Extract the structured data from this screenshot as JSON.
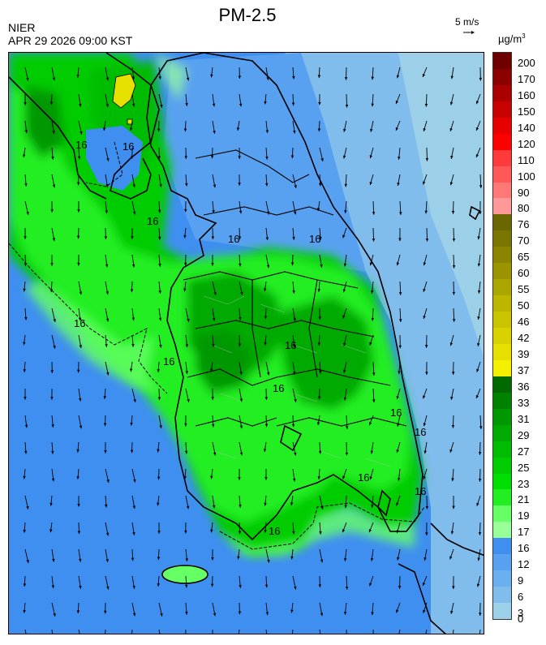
{
  "header": {
    "title": "PM-2.5",
    "agency": "NIER",
    "datetime": "APR 29 2026 09:00 KST",
    "reference_vector": "5 m/s",
    "unit_base": "µg/m",
    "unit_exp": "3"
  },
  "colorbar": {
    "labels": [
      "200",
      "170",
      "160",
      "150",
      "140",
      "120",
      "110",
      "100",
      "90",
      "80",
      "76",
      "70",
      "65",
      "60",
      "55",
      "50",
      "46",
      "42",
      "39",
      "37",
      "36",
      "33",
      "31",
      "29",
      "27",
      "25",
      "23",
      "21",
      "19",
      "17",
      "16",
      "12",
      "9",
      "6",
      "3",
      "0"
    ],
    "colors": [
      "#6e0000",
      "#8c0000",
      "#aa0000",
      "#c80000",
      "#e60000",
      "#ff0000",
      "#ff3a3a",
      "#ff5858",
      "#ff7878",
      "#ff9898",
      "#6a6600",
      "#7a7400",
      "#8a8400",
      "#9a9400",
      "#aca600",
      "#bcb600",
      "#cac400",
      "#d8d200",
      "#e6e000",
      "#f5f000",
      "#006a00",
      "#008200",
      "#009800",
      "#00aa00",
      "#00bc00",
      "#00cc00",
      "#00dd00",
      "#22ee22",
      "#66ff66",
      "#99ff99",
      "#3f8ff0",
      "#58a1f0",
      "#6ab0f0",
      "#80bcec",
      "#9ccfe8"
    ]
  },
  "map": {
    "contour_label": "16",
    "contour_label_positions_count": 14,
    "wind_direction": "southward"
  }
}
